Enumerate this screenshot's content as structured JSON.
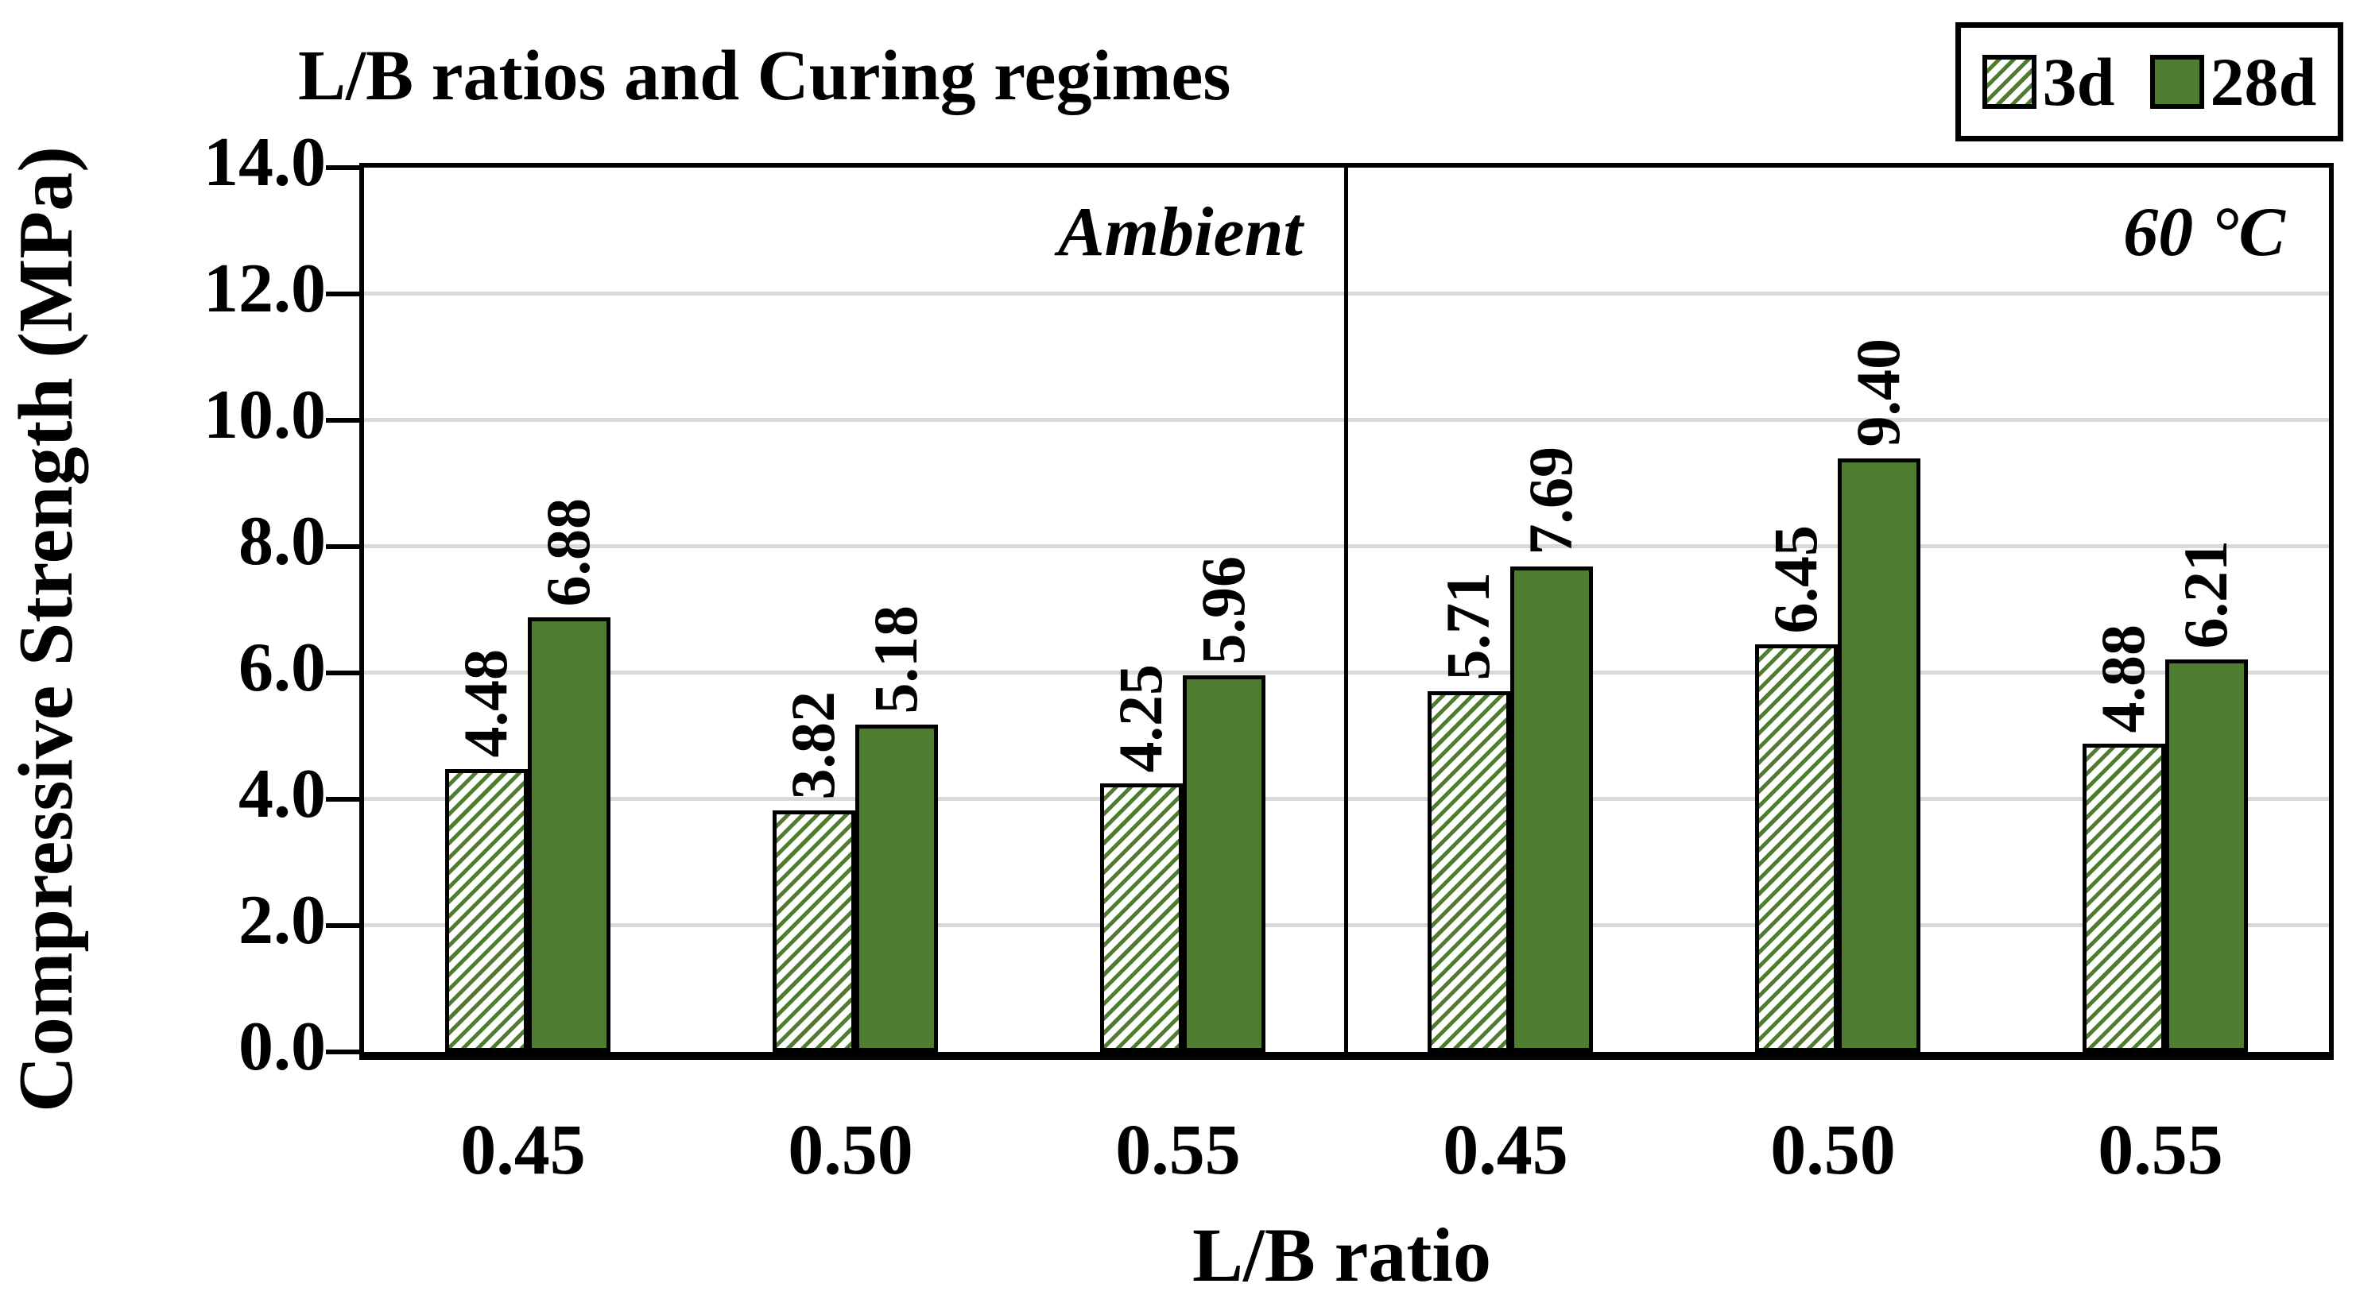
{
  "title": "L/B ratios and Curing regimes",
  "y_axis": {
    "label": "Compressive Strength (MPa)",
    "min": 0,
    "max": 14,
    "step": 2,
    "tick_labels": [
      "0.0",
      "2.0",
      "4.0",
      "6.0",
      "8.0",
      "10.0",
      "12.0",
      "14.0"
    ]
  },
  "x_axis": {
    "label": "L/B ratio"
  },
  "legend": [
    {
      "name": "3d",
      "style": "hatched"
    },
    {
      "name": "28d",
      "style": "solid"
    }
  ],
  "colors": {
    "bar_green": "#4e7d30",
    "hatch_background": "#ffffff",
    "gridline": "#d9d9d9",
    "axis": "#000000"
  },
  "chart_data": {
    "type": "bar",
    "title": "L/B ratios and Curing regimes",
    "xlabel": "L/B ratio",
    "ylabel": "Compressive Strength (MPa)",
    "ylim": [
      0,
      14
    ],
    "ytick_step": 2,
    "grid": true,
    "legend_position": "top-right",
    "sections": [
      {
        "label": "Ambient",
        "categories": [
          "0.45",
          "0.50",
          "0.55"
        ],
        "series": [
          {
            "name": "3d",
            "style": "hatched",
            "values": [
              4.48,
              3.82,
              4.25
            ]
          },
          {
            "name": "28d",
            "style": "solid",
            "values": [
              6.88,
              5.18,
              5.96
            ]
          }
        ]
      },
      {
        "label": "60 °C",
        "categories": [
          "0.45",
          "0.50",
          "0.55"
        ],
        "series": [
          {
            "name": "3d",
            "style": "hatched",
            "values": [
              5.71,
              6.45,
              4.88
            ]
          },
          {
            "name": "28d",
            "style": "solid",
            "values": [
              7.69,
              9.4,
              6.21
            ]
          }
        ]
      }
    ]
  }
}
